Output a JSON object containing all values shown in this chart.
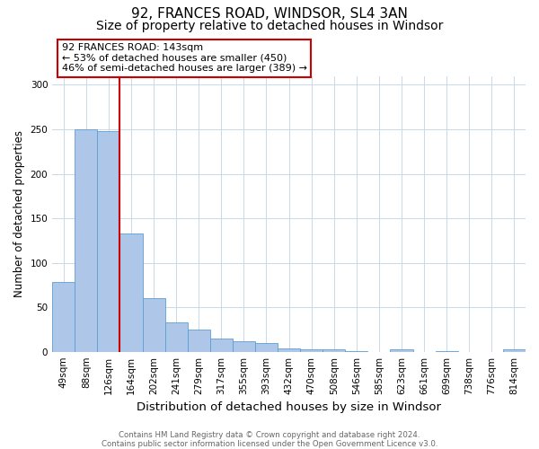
{
  "title1": "92, FRANCES ROAD, WINDSOR, SL4 3AN",
  "title2": "Size of property relative to detached houses in Windsor",
  "xlabel": "Distribution of detached houses by size in Windsor",
  "ylabel": "Number of detached properties",
  "categories": [
    "49sqm",
    "88sqm",
    "126sqm",
    "164sqm",
    "202sqm",
    "241sqm",
    "279sqm",
    "317sqm",
    "355sqm",
    "393sqm",
    "432sqm",
    "470sqm",
    "508sqm",
    "546sqm",
    "585sqm",
    "623sqm",
    "661sqm",
    "699sqm",
    "738sqm",
    "776sqm",
    "814sqm"
  ],
  "values": [
    78,
    250,
    248,
    133,
    60,
    33,
    25,
    15,
    12,
    10,
    4,
    3,
    3,
    1,
    0,
    3,
    0,
    1,
    0,
    0,
    3
  ],
  "bar_color": "#aec6e8",
  "bar_edge_color": "#5a9fd4",
  "vline_x": 2.5,
  "vline_color": "#cc0000",
  "annotation_line1": "92 FRANCES ROAD: 143sqm",
  "annotation_line2": "← 53% of detached houses are smaller (450)",
  "annotation_line3": "46% of semi-detached houses are larger (389) →",
  "annotation_box_color": "#ffffff",
  "annotation_box_edge": "#cc0000",
  "ylim": [
    0,
    310
  ],
  "yticks": [
    0,
    50,
    100,
    150,
    200,
    250,
    300
  ],
  "title1_fontsize": 11,
  "title2_fontsize": 10,
  "xlabel_fontsize": 9.5,
  "ylabel_fontsize": 8.5,
  "tick_fontsize": 7.5,
  "annotation_fontsize": 8.0,
  "footer1": "Contains HM Land Registry data © Crown copyright and database right 2024.",
  "footer2": "Contains public sector information licensed under the Open Government Licence v3.0.",
  "background_color": "#ffffff",
  "grid_color": "#c8d8e8"
}
